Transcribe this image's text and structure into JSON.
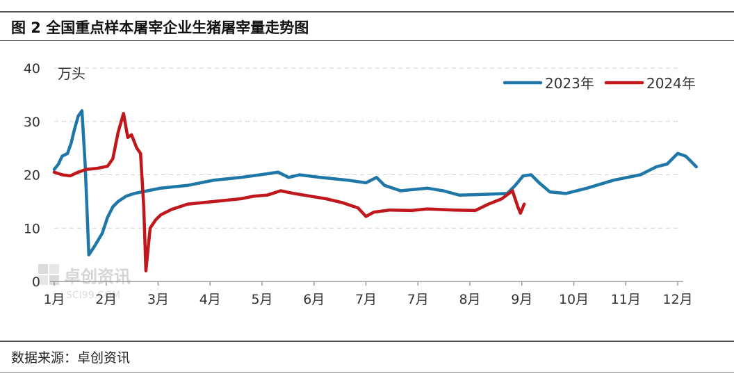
{
  "header": {
    "title": "图 2  全国重点样本屠宰企业生猪屠宰量走势图"
  },
  "footer": {
    "source": "数据来源：卓创资讯"
  },
  "watermark": {
    "text": "卓创资讯",
    "subtext": "SCI99.COM"
  },
  "chart_data": {
    "type": "line",
    "title": "图 2  全国重点样本屠宰企业生猪屠宰量走势图",
    "ylabel": "万头",
    "xlabel": "",
    "ylim": [
      0,
      40
    ],
    "yticks": [
      0,
      10,
      20,
      30,
      40
    ],
    "grid": true,
    "legend": "top-right",
    "categories": [
      "1月",
      "2月",
      "3月",
      "4月",
      "5月",
      "6月",
      "7月",
      "7月",
      "8月",
      "9月",
      "10月",
      "11月",
      "12月"
    ],
    "x_domain": [
      0,
      11.7
    ],
    "series": [
      {
        "name": "2023年",
        "color": "#1f77a8",
        "points": [
          [
            0.0,
            21
          ],
          [
            0.08,
            22
          ],
          [
            0.15,
            23.5
          ],
          [
            0.25,
            24
          ],
          [
            0.32,
            26
          ],
          [
            0.38,
            28.5
          ],
          [
            0.45,
            31
          ],
          [
            0.52,
            32
          ],
          [
            0.58,
            22
          ],
          [
            0.65,
            5
          ],
          [
            0.75,
            6.5
          ],
          [
            0.9,
            9
          ],
          [
            1.0,
            12
          ],
          [
            1.1,
            14
          ],
          [
            1.2,
            15
          ],
          [
            1.35,
            16
          ],
          [
            1.5,
            16.5
          ],
          [
            1.75,
            17
          ],
          [
            2.0,
            17.5
          ],
          [
            2.5,
            18
          ],
          [
            3.0,
            19
          ],
          [
            3.5,
            19.5
          ],
          [
            4.0,
            20.2
          ],
          [
            4.2,
            20.5
          ],
          [
            4.4,
            19.5
          ],
          [
            4.6,
            20
          ],
          [
            5.0,
            19.5
          ],
          [
            5.5,
            19
          ],
          [
            5.85,
            18.5
          ],
          [
            6.05,
            19.5
          ],
          [
            6.2,
            18
          ],
          [
            6.5,
            17
          ],
          [
            7.0,
            17.5
          ],
          [
            7.3,
            17
          ],
          [
            7.6,
            16.2
          ],
          [
            8.0,
            16.3
          ],
          [
            8.5,
            16.5
          ],
          [
            8.65,
            18
          ],
          [
            8.8,
            19.8
          ],
          [
            8.95,
            20
          ],
          [
            9.1,
            18.5
          ],
          [
            9.3,
            16.8
          ],
          [
            9.6,
            16.5
          ],
          [
            10.0,
            17.5
          ],
          [
            10.5,
            19
          ],
          [
            11.0,
            20
          ],
          [
            11.3,
            21.5
          ],
          [
            11.5,
            22
          ],
          [
            11.7,
            24
          ],
          [
            11.85,
            23.5
          ],
          [
            11.95,
            22.5
          ],
          [
            12.05,
            21.5
          ]
        ]
      },
      {
        "name": "2024年",
        "color": "#c0171c",
        "points": [
          [
            0.0,
            20.5
          ],
          [
            0.15,
            20
          ],
          [
            0.3,
            19.8
          ],
          [
            0.45,
            20.5
          ],
          [
            0.6,
            21
          ],
          [
            0.8,
            21.2
          ],
          [
            1.0,
            21.6
          ],
          [
            1.1,
            23
          ],
          [
            1.2,
            28
          ],
          [
            1.3,
            31.5
          ],
          [
            1.38,
            27
          ],
          [
            1.45,
            27.5
          ],
          [
            1.55,
            25
          ],
          [
            1.62,
            24
          ],
          [
            1.68,
            14
          ],
          [
            1.72,
            2
          ],
          [
            1.8,
            10
          ],
          [
            1.9,
            11.5
          ],
          [
            2.0,
            12.5
          ],
          [
            2.2,
            13.5
          ],
          [
            2.5,
            14.5
          ],
          [
            3.0,
            15
          ],
          [
            3.5,
            15.5
          ],
          [
            3.75,
            16
          ],
          [
            4.0,
            16.2
          ],
          [
            4.25,
            17
          ],
          [
            4.5,
            16.5
          ],
          [
            4.8,
            16
          ],
          [
            5.1,
            15.5
          ],
          [
            5.4,
            14.8
          ],
          [
            5.7,
            13.8
          ],
          [
            5.85,
            12.2
          ],
          [
            6.0,
            13
          ],
          [
            6.3,
            13.4
          ],
          [
            6.7,
            13.3
          ],
          [
            7.0,
            13.6
          ],
          [
            7.5,
            13.4
          ],
          [
            7.9,
            13.3
          ],
          [
            8.15,
            14.5
          ],
          [
            8.4,
            15.5
          ],
          [
            8.6,
            17
          ],
          [
            8.7,
            14
          ],
          [
            8.75,
            12.8
          ],
          [
            8.82,
            14.5
          ]
        ]
      }
    ]
  }
}
